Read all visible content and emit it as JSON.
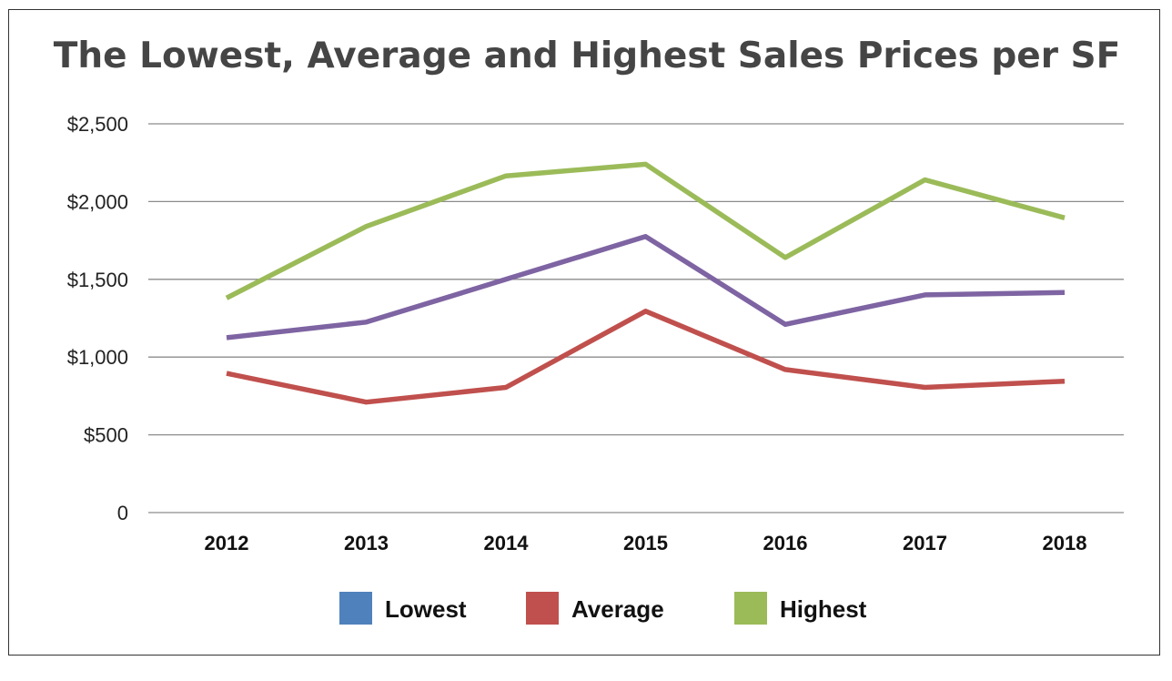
{
  "chart_data": {
    "type": "line",
    "title": "The Lowest, Average and Highest Sales Prices per SF",
    "xlabel": "",
    "ylabel": "",
    "categories": [
      "2012",
      "2013",
      "2014",
      "2015",
      "2016",
      "2017",
      "2018"
    ],
    "ylim": [
      0,
      2500
    ],
    "yticks": [
      {
        "value": 0,
        "label": "0"
      },
      {
        "value": 500,
        "label": "$500"
      },
      {
        "value": 1000,
        "label": "$1,000"
      },
      {
        "value": 1500,
        "label": "$1,500"
      },
      {
        "value": 2000,
        "label": "$2,000"
      },
      {
        "value": 2500,
        "label": "$2,500"
      }
    ],
    "grid": true,
    "legend_position": "bottom",
    "series": [
      {
        "name": "Highest",
        "values": [
          1380,
          1840,
          2165,
          2240,
          1640,
          2140,
          1895
        ],
        "line_color": "#9bbb59"
      },
      {
        "name": "",
        "values": [
          1125,
          1225,
          1500,
          1775,
          1210,
          1400,
          1415
        ],
        "line_color": "#7e64a2"
      },
      {
        "name": "Average",
        "values": [
          895,
          710,
          805,
          1295,
          920,
          805,
          845
        ],
        "line_color": "#c0504d"
      }
    ],
    "legend": [
      {
        "label": "Lowest",
        "color": "#4f81bd"
      },
      {
        "label": "Average",
        "color": "#c0504d"
      },
      {
        "label": "Highest",
        "color": "#9bbb59"
      }
    ]
  }
}
